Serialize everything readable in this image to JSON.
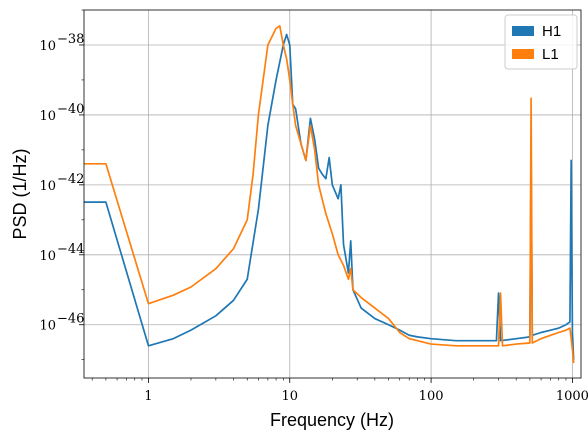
{
  "chart_data": {
    "type": "line",
    "title": "",
    "xlabel": "Frequency (Hz)",
    "ylabel": "PSD (1/Hz)",
    "xscale": "log",
    "yscale": "log",
    "xlim": [
      0.35,
      1150
    ],
    "ylim": [
      3e-48,
      1e-37
    ],
    "grid": true,
    "legend_position": "top-right",
    "x_ticks": [
      {
        "value": 1,
        "label": "1"
      },
      {
        "value": 10,
        "label": "10"
      },
      {
        "value": 100,
        "label": "100"
      },
      {
        "value": 1000,
        "label": "1000"
      }
    ],
    "y_ticks": [
      {
        "exp": -38,
        "base": "10",
        "sup": "−38"
      },
      {
        "exp": -40,
        "base": "10",
        "sup": "−40"
      },
      {
        "exp": -42,
        "base": "10",
        "sup": "−42"
      },
      {
        "exp": -44,
        "base": "10",
        "sup": "−44"
      },
      {
        "exp": -46,
        "base": "10",
        "sup": "−46"
      }
    ],
    "series": [
      {
        "name": "H1",
        "color": "#1f77b4",
        "points": [
          [
            0.35,
            3.2e-43
          ],
          [
            0.5,
            3.2e-43
          ],
          [
            1.0,
            2.5e-47
          ],
          [
            1.5,
            4e-47
          ],
          [
            2,
            7e-47
          ],
          [
            3,
            1.8e-46
          ],
          [
            4,
            5e-46
          ],
          [
            5,
            2e-45
          ],
          [
            6,
            2e-43
          ],
          [
            7,
            5e-41
          ],
          [
            8,
            1e-39
          ],
          [
            9,
            1e-38
          ],
          [
            9.5,
            2e-38
          ],
          [
            10,
            1e-38
          ],
          [
            10.5,
            2e-40
          ],
          [
            11,
            1.5e-40
          ],
          [
            12,
            1.5e-41
          ],
          [
            13,
            5e-42
          ],
          [
            14,
            8e-41
          ],
          [
            15,
            2e-41
          ],
          [
            16,
            3e-42
          ],
          [
            17,
            2e-42
          ],
          [
            18,
            1.5e-42
          ],
          [
            19,
            6e-42
          ],
          [
            20,
            1e-42
          ],
          [
            22,
            4e-43
          ],
          [
            23,
            1e-42
          ],
          [
            24,
            2e-44
          ],
          [
            26,
            3e-45
          ],
          [
            27,
            2.5e-44
          ],
          [
            28,
            1e-45
          ],
          [
            32,
            3e-46
          ],
          [
            40,
            1.5e-46
          ],
          [
            50,
            1e-46
          ],
          [
            60,
            7e-47
          ],
          [
            70,
            5e-47
          ],
          [
            80,
            4.5e-47
          ],
          [
            100,
            4e-47
          ],
          [
            150,
            3.5e-47
          ],
          [
            200,
            3.5e-47
          ],
          [
            290,
            3.5e-47
          ],
          [
            300,
            8e-46
          ],
          [
            310,
            3.5e-47
          ],
          [
            400,
            4e-47
          ],
          [
            500,
            4.5e-47
          ],
          [
            510,
            1e-41
          ],
          [
            520,
            5e-47
          ],
          [
            600,
            6e-47
          ],
          [
            700,
            7e-47
          ],
          [
            800,
            8e-47
          ],
          [
            900,
            1e-46
          ],
          [
            960,
            1.2e-46
          ],
          [
            980,
            5e-42
          ],
          [
            1000,
            6e-47
          ],
          [
            1020,
            1e-47
          ]
        ]
      },
      {
        "name": "L1",
        "color": "#ff7f0e",
        "points": [
          [
            0.35,
            4e-42
          ],
          [
            0.5,
            4e-42
          ],
          [
            1.0,
            4e-46
          ],
          [
            1.5,
            7e-46
          ],
          [
            2,
            1.2e-45
          ],
          [
            3,
            4e-45
          ],
          [
            4,
            1.5e-44
          ],
          [
            5,
            1e-43
          ],
          [
            5.5,
            2e-42
          ],
          [
            6,
            1e-40
          ],
          [
            7,
            1e-38
          ],
          [
            8,
            3e-38
          ],
          [
            8.5,
            3.5e-38
          ],
          [
            9,
            1e-38
          ],
          [
            9.5,
            4e-39
          ],
          [
            10,
            1e-39
          ],
          [
            10.5,
            2e-40
          ],
          [
            11,
            5e-41
          ],
          [
            12,
            1.5e-41
          ],
          [
            13,
            5e-42
          ],
          [
            14,
            5e-41
          ],
          [
            15,
            1e-41
          ],
          [
            16,
            1e-42
          ],
          [
            18,
            1.5e-43
          ],
          [
            20,
            4e-44
          ],
          [
            22,
            1e-44
          ],
          [
            24,
            5e-45
          ],
          [
            26,
            2e-45
          ],
          [
            27,
            4e-45
          ],
          [
            28,
            1e-45
          ],
          [
            32,
            6e-46
          ],
          [
            40,
            3e-46
          ],
          [
            50,
            1.5e-46
          ],
          [
            60,
            6e-47
          ],
          [
            70,
            4e-47
          ],
          [
            80,
            3.5e-47
          ],
          [
            100,
            2.8e-47
          ],
          [
            150,
            2.5e-47
          ],
          [
            200,
            2.5e-47
          ],
          [
            300,
            2.5e-47
          ],
          [
            310,
            8e-46
          ],
          [
            320,
            2.5e-47
          ],
          [
            400,
            2.8e-47
          ],
          [
            500,
            3e-47
          ],
          [
            510,
            3e-40
          ],
          [
            520,
            3e-47
          ],
          [
            600,
            4e-47
          ],
          [
            700,
            5e-47
          ],
          [
            800,
            6e-47
          ],
          [
            900,
            7e-47
          ],
          [
            960,
            8e-47
          ],
          [
            1000,
            2e-47
          ],
          [
            1020,
            8e-48
          ]
        ]
      }
    ]
  }
}
